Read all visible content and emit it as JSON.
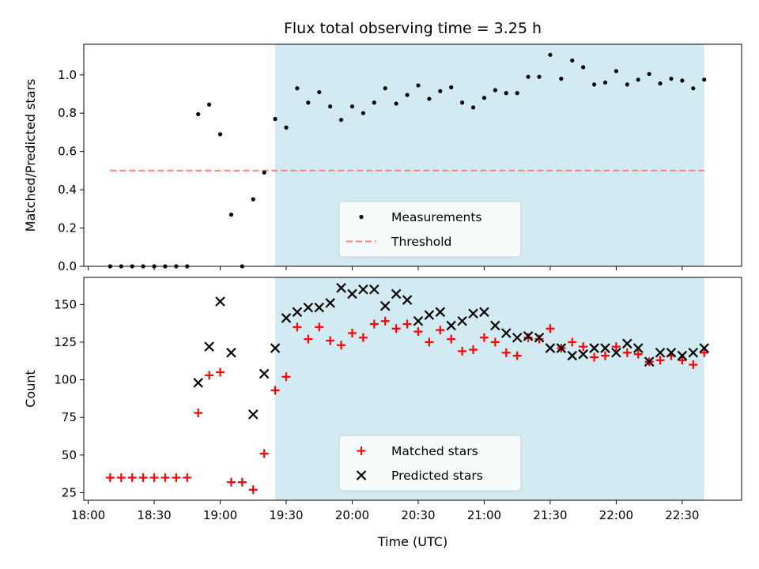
{
  "chart_data": {
    "title": "Flux total observing time = 3.25 h",
    "xlabel": "Time (UTC)",
    "x_ticks": [
      "18:00",
      "18:30",
      "19:00",
      "19:30",
      "20:00",
      "20:30",
      "21:00",
      "21:30",
      "22:00",
      "22:30"
    ],
    "x_unit": "minutes",
    "xlim": [
      "17:58",
      "22:57"
    ],
    "observing_window": {
      "start": "19:25",
      "end": "22:40",
      "color": "#add8e6"
    },
    "panels": [
      {
        "type": "scatter",
        "ylabel": "Matched/Predicted stars",
        "ylim": [
          0,
          1.16
        ],
        "y_ticks": [
          "0.0",
          "0.2",
          "0.4",
          "0.6",
          "0.8",
          "1.0"
        ],
        "legend_position": "lower-center",
        "threshold": {
          "name": "Threshold",
          "value": 0.5,
          "x_start": "18:10",
          "x_end": "22:40",
          "color": "#ff7f7f"
        },
        "series": [
          {
            "name": "Measurements",
            "marker": "dot",
            "color": "#000000",
            "points": [
              [
                "18:10",
                0.0
              ],
              [
                "18:15",
                0.0
              ],
              [
                "18:20",
                0.0
              ],
              [
                "18:25",
                0.0
              ],
              [
                "18:30",
                0.0
              ],
              [
                "18:35",
                0.0
              ],
              [
                "18:40",
                0.0
              ],
              [
                "18:45",
                0.0
              ],
              [
                "18:50",
                0.795
              ],
              [
                "18:55",
                0.845
              ],
              [
                "19:00",
                0.69
              ],
              [
                "19:05",
                0.27
              ],
              [
                "19:10",
                0.0
              ],
              [
                "19:15",
                0.35
              ],
              [
                "19:20",
                0.49
              ],
              [
                "19:25",
                0.77
              ],
              [
                "19:30",
                0.725
              ],
              [
                "19:35",
                0.93
              ],
              [
                "19:40",
                0.855
              ],
              [
                "19:45",
                0.91
              ],
              [
                "19:50",
                0.835
              ],
              [
                "19:55",
                0.765
              ],
              [
                "20:00",
                0.835
              ],
              [
                "20:05",
                0.8
              ],
              [
                "20:10",
                0.855
              ],
              [
                "20:15",
                0.93
              ],
              [
                "20:20",
                0.85
              ],
              [
                "20:25",
                0.895
              ],
              [
                "20:30",
                0.945
              ],
              [
                "20:35",
                0.875
              ],
              [
                "20:40",
                0.915
              ],
              [
                "20:45",
                0.935
              ],
              [
                "20:50",
                0.855
              ],
              [
                "20:55",
                0.83
              ],
              [
                "21:00",
                0.88
              ],
              [
                "21:05",
                0.92
              ],
              [
                "21:10",
                0.905
              ],
              [
                "21:15",
                0.905
              ],
              [
                "21:20",
                0.99
              ],
              [
                "21:25",
                0.99
              ],
              [
                "21:30",
                1.105
              ],
              [
                "21:35",
                0.98
              ],
              [
                "21:40",
                1.075
              ],
              [
                "21:45",
                1.04
              ],
              [
                "21:50",
                0.95
              ],
              [
                "21:55",
                0.96
              ],
              [
                "22:00",
                1.02
              ],
              [
                "22:05",
                0.95
              ],
              [
                "22:10",
                0.975
              ],
              [
                "22:15",
                1.005
              ],
              [
                "22:20",
                0.955
              ],
              [
                "22:25",
                0.98
              ],
              [
                "22:30",
                0.97
              ],
              [
                "22:35",
                0.93
              ],
              [
                "22:40",
                0.975
              ]
            ]
          }
        ]
      },
      {
        "type": "scatter",
        "ylabel": "Count",
        "ylim": [
          20,
          168
        ],
        "y_ticks": [
          "25",
          "50",
          "75",
          "100",
          "125",
          "150"
        ],
        "legend_position": "lower-center",
        "series": [
          {
            "name": "Matched stars",
            "marker": "plus",
            "color": "#ff0000",
            "points": [
              [
                "18:10",
                35
              ],
              [
                "18:15",
                35
              ],
              [
                "18:20",
                35
              ],
              [
                "18:25",
                35
              ],
              [
                "18:30",
                35
              ],
              [
                "18:35",
                35
              ],
              [
                "18:40",
                35
              ],
              [
                "18:45",
                35
              ],
              [
                "18:50",
                78
              ],
              [
                "18:55",
                103
              ],
              [
                "19:00",
                105
              ],
              [
                "19:05",
                32
              ],
              [
                "19:10",
                32
              ],
              [
                "19:15",
                27
              ],
              [
                "19:20",
                51
              ],
              [
                "19:25",
                93
              ],
              [
                "19:30",
                102
              ],
              [
                "19:35",
                135
              ],
              [
                "19:40",
                127
              ],
              [
                "19:45",
                135
              ],
              [
                "19:50",
                126
              ],
              [
                "19:55",
                123
              ],
              [
                "20:00",
                131
              ],
              [
                "20:05",
                128
              ],
              [
                "20:10",
                137
              ],
              [
                "20:15",
                139
              ],
              [
                "20:20",
                134
              ],
              [
                "20:25",
                137
              ],
              [
                "20:30",
                132
              ],
              [
                "20:35",
                125
              ],
              [
                "20:40",
                133
              ],
              [
                "20:45",
                127
              ],
              [
                "20:50",
                119
              ],
              [
                "20:55",
                120
              ],
              [
                "21:00",
                128
              ],
              [
                "21:05",
                125
              ],
              [
                "21:10",
                118
              ],
              [
                "21:15",
                116
              ],
              [
                "21:20",
                128
              ],
              [
                "21:25",
                127
              ],
              [
                "21:30",
                134
              ],
              [
                "21:35",
                121
              ],
              [
                "21:40",
                125
              ],
              [
                "21:45",
                122
              ],
              [
                "21:50",
                115
              ],
              [
                "21:55",
                116
              ],
              [
                "22:00",
                122
              ],
              [
                "22:05",
                118
              ],
              [
                "22:10",
                117
              ],
              [
                "22:15",
                112
              ],
              [
                "22:20",
                113
              ],
              [
                "22:25",
                116
              ],
              [
                "22:30",
                113
              ],
              [
                "22:35",
                110
              ],
              [
                "22:40",
                118
              ]
            ]
          },
          {
            "name": "Predicted stars",
            "marker": "x",
            "color": "#000000",
            "points": [
              [
                "18:50",
                98
              ],
              [
                "18:55",
                122
              ],
              [
                "19:00",
                152
              ],
              [
                "19:05",
                118
              ],
              [
                "19:15",
                77
              ],
              [
                "19:20",
                104
              ],
              [
                "19:25",
                121
              ],
              [
                "19:30",
                141
              ],
              [
                "19:35",
                145
              ],
              [
                "19:40",
                148
              ],
              [
                "19:45",
                148
              ],
              [
                "19:50",
                151
              ],
              [
                "19:55",
                161
              ],
              [
                "20:00",
                157
              ],
              [
                "20:05",
                160
              ],
              [
                "20:10",
                160
              ],
              [
                "20:15",
                149
              ],
              [
                "20:20",
                157
              ],
              [
                "20:25",
                153
              ],
              [
                "20:30",
                139
              ],
              [
                "20:35",
                143
              ],
              [
                "20:40",
                145
              ],
              [
                "20:45",
                136
              ],
              [
                "20:50",
                139
              ],
              [
                "20:55",
                144
              ],
              [
                "21:00",
                145
              ],
              [
                "21:05",
                136
              ],
              [
                "21:10",
                131
              ],
              [
                "21:15",
                128
              ],
              [
                "21:20",
                129
              ],
              [
                "21:25",
                128
              ],
              [
                "21:30",
                121
              ],
              [
                "21:35",
                121
              ],
              [
                "21:40",
                116
              ],
              [
                "21:45",
                117
              ],
              [
                "21:50",
                121
              ],
              [
                "21:55",
                121
              ],
              [
                "22:00",
                118
              ],
              [
                "22:05",
                124
              ],
              [
                "22:10",
                121
              ],
              [
                "22:15",
                112
              ],
              [
                "22:20",
                118
              ],
              [
                "22:25",
                118
              ],
              [
                "22:30",
                116
              ],
              [
                "22:35",
                118
              ],
              [
                "22:40",
                121
              ]
            ]
          }
        ]
      }
    ]
  }
}
